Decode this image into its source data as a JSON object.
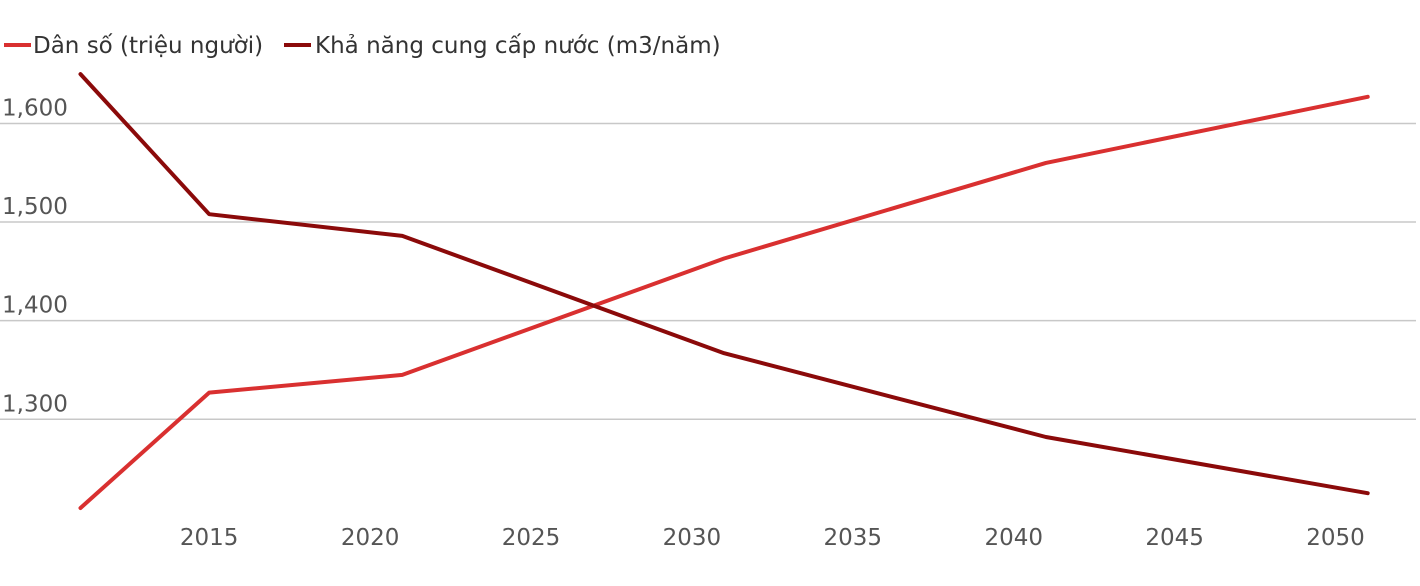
{
  "chart_data": {
    "type": "line",
    "title": "",
    "xlabel": "",
    "ylabel": "",
    "x": [
      2011,
      2015,
      2021,
      2031,
      2041,
      2051
    ],
    "x_ticks": [
      2015,
      2020,
      2025,
      2030,
      2035,
      2040,
      2045,
      2050
    ],
    "x_tick_labels": [
      "2015",
      "2020",
      "2025",
      "2030",
      "2035",
      "2040",
      "2045",
      "2050"
    ],
    "y_ticks": [
      1300,
      1400,
      1500,
      1600
    ],
    "y_tick_labels": [
      "1,300",
      "1,400",
      "1,500",
      "1,600"
    ],
    "ylim": [
      1210,
      1640
    ],
    "xlim": [
      2008.5,
      2052.5
    ],
    "grid": true,
    "legend_position": "top-left",
    "series": [
      {
        "name": "Dân số (triệu người)",
        "color": "#d93030",
        "values": [
          1210,
          1327,
          1345,
          1463,
          1560,
          1627
        ]
      },
      {
        "name": "Khả năng cung cấp nước (m3/năm)",
        "color": "#8b0a0a",
        "values": [
          1650,
          1508,
          1486,
          1367,
          1282,
          1225
        ]
      }
    ]
  }
}
